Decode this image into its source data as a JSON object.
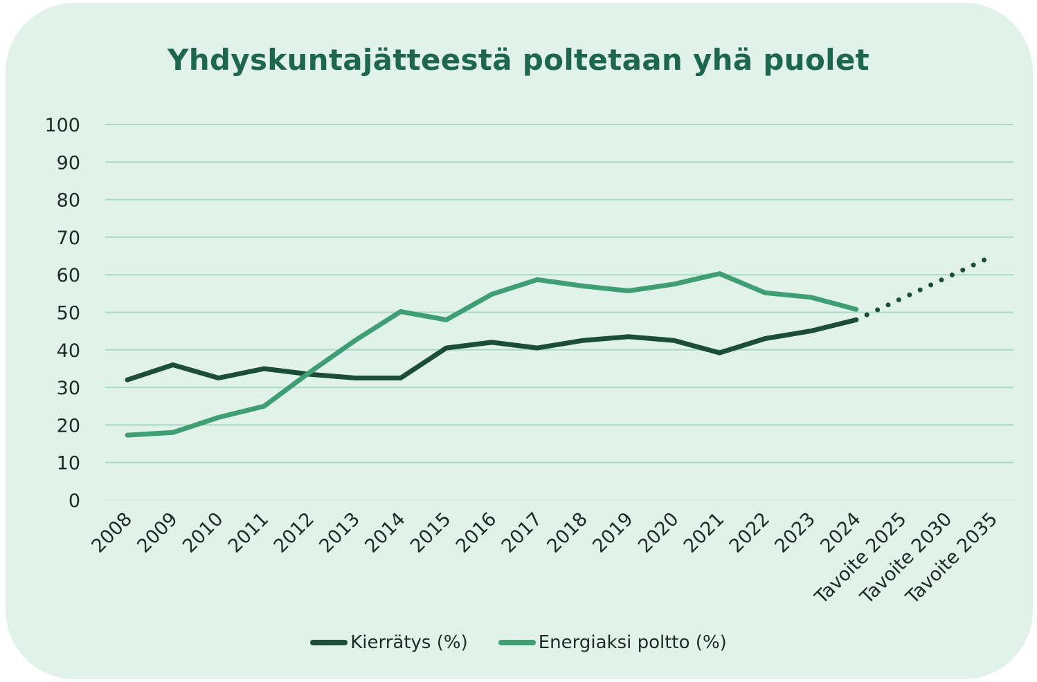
{
  "chart_data": {
    "type": "line",
    "title": "Yhdyskuntajätteestä poltetaan yhä puolet",
    "categories": [
      "2008",
      "2009",
      "2010",
      "2011",
      "2012",
      "2013",
      "2014",
      "2015",
      "2016",
      "2017",
      "2018",
      "2019",
      "2020",
      "2021",
      "2022",
      "2023",
      "2024",
      "Tavoite 2025",
      "Tavoite 2030",
      "Tavoite 2035"
    ],
    "yticks": [
      0,
      10,
      20,
      30,
      40,
      50,
      60,
      70,
      80,
      90,
      100
    ],
    "ylim": [
      0,
      100
    ],
    "grid": true,
    "legend_position": "bottom",
    "series": [
      {
        "name": "Kierrätys (%)",
        "color": "#1b4d3a",
        "values": [
          32,
          36,
          32.5,
          35,
          33.5,
          32.5,
          32.5,
          40.5,
          42,
          40.5,
          42.5,
          43.5,
          42.5,
          39.2,
          43,
          45,
          48,
          null,
          null,
          null
        ]
      },
      {
        "name": "Energiaksi poltto (%)",
        "color": "#3f9e74",
        "values": [
          17.3,
          18,
          22,
          25,
          34,
          42.5,
          50.2,
          48,
          54.8,
          58.7,
          57,
          55.7,
          57.5,
          60.3,
          55.2,
          54,
          50.8,
          null,
          null,
          null
        ]
      }
    ],
    "target_projection": {
      "style": "dotted",
      "color": "#1b4d3a",
      "from_index": 16,
      "from_value": 48,
      "to_index": 19,
      "to_value": 65
    }
  },
  "colors": {
    "background": "#e0f2ea",
    "title": "#1f6650",
    "grid": "#a7dcc3",
    "text": "#1e2a25"
  }
}
